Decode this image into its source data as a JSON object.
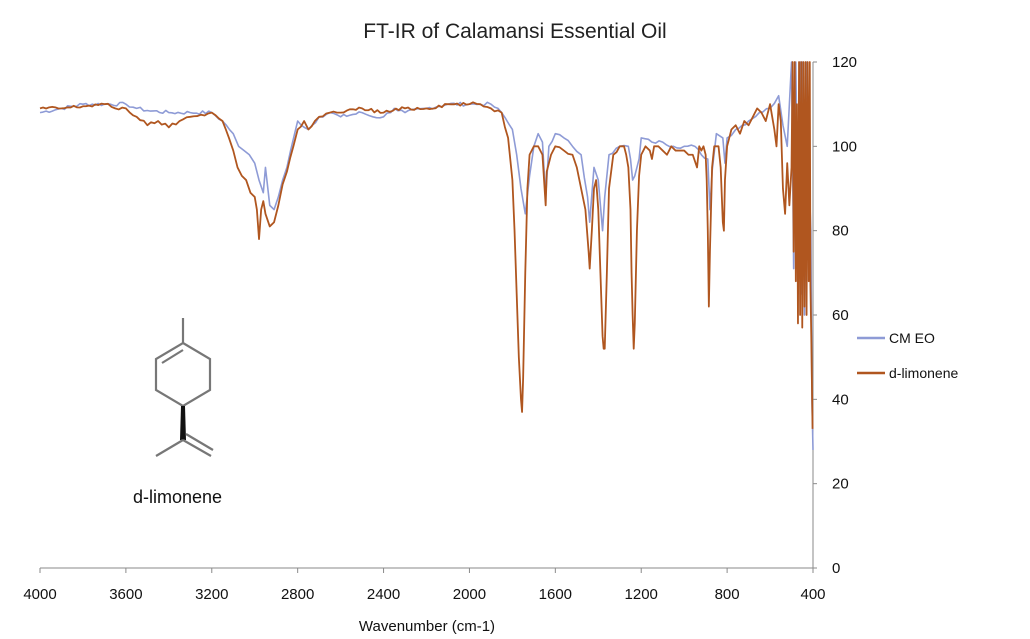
{
  "chart_data": {
    "type": "line",
    "title": "FT-IR of Calamansi Essential Oil",
    "xlabel": "Wavenumber (cm-1)",
    "ylabel": "",
    "xlim": [
      4000,
      400
    ],
    "ylim": [
      0,
      120
    ],
    "x_reversed": true,
    "x_ticks": [
      "4000",
      "3600",
      "3200",
      "2800",
      "2400",
      "2000",
      "1600",
      "1200",
      "800",
      "400"
    ],
    "y_ticks": [
      "0",
      "20",
      "40",
      "60",
      "80",
      "100",
      "120"
    ],
    "y_axis_position": "right",
    "grid": false,
    "legend_position": "right",
    "annotation": "d-limonene",
    "series": [
      {
        "name": "CM EO",
        "color": "#8e9bd6",
        "points": [
          [
            4000,
            108
          ],
          [
            3900,
            109
          ],
          [
            3800,
            110
          ],
          [
            3700,
            110
          ],
          [
            3600,
            110
          ],
          [
            3550,
            109
          ],
          [
            3500,
            108.5
          ],
          [
            3400,
            108
          ],
          [
            3300,
            108
          ],
          [
            3200,
            108
          ],
          [
            3150,
            106
          ],
          [
            3100,
            103
          ],
          [
            3075,
            100
          ],
          [
            3050,
            99
          ],
          [
            3025,
            98
          ],
          [
            3000,
            96
          ],
          [
            2980,
            92
          ],
          [
            2960,
            89
          ],
          [
            2950,
            95
          ],
          [
            2930,
            86
          ],
          [
            2910,
            85
          ],
          [
            2890,
            88
          ],
          [
            2870,
            92
          ],
          [
            2850,
            95
          ],
          [
            2800,
            106
          ],
          [
            2750,
            104
          ],
          [
            2700,
            107
          ],
          [
            2650,
            108
          ],
          [
            2600,
            107
          ],
          [
            2500,
            108
          ],
          [
            2450,
            107
          ],
          [
            2400,
            107
          ],
          [
            2350,
            109
          ],
          [
            2300,
            108
          ],
          [
            2200,
            109
          ],
          [
            2100,
            110
          ],
          [
            2000,
            110
          ],
          [
            1950,
            110
          ],
          [
            1900,
            110
          ],
          [
            1850,
            108
          ],
          [
            1800,
            104
          ],
          [
            1780,
            98
          ],
          [
            1760,
            90
          ],
          [
            1740,
            84
          ],
          [
            1720,
            93
          ],
          [
            1700,
            100
          ],
          [
            1680,
            103
          ],
          [
            1660,
            101
          ],
          [
            1645,
            88
          ],
          [
            1630,
            100
          ],
          [
            1600,
            103
          ],
          [
            1560,
            102
          ],
          [
            1520,
            100
          ],
          [
            1480,
            98
          ],
          [
            1450,
            88
          ],
          [
            1440,
            82
          ],
          [
            1420,
            95
          ],
          [
            1400,
            92
          ],
          [
            1380,
            80
          ],
          [
            1370,
            88
          ],
          [
            1350,
            98
          ],
          [
            1300,
            100
          ],
          [
            1260,
            100
          ],
          [
            1250,
            97
          ],
          [
            1240,
            92
          ],
          [
            1230,
            93
          ],
          [
            1210,
            97
          ],
          [
            1200,
            102
          ],
          [
            1150,
            101
          ],
          [
            1100,
            101
          ],
          [
            1050,
            100
          ],
          [
            1000,
            100
          ],
          [
            950,
            100
          ],
          [
            920,
            98
          ],
          [
            890,
            97
          ],
          [
            880,
            85
          ],
          [
            870,
            94
          ],
          [
            850,
            103
          ],
          [
            820,
            102
          ],
          [
            810,
            96
          ],
          [
            800,
            102
          ],
          [
            760,
            104
          ],
          [
            700,
            106
          ],
          [
            650,
            108
          ],
          [
            600,
            109
          ],
          [
            560,
            112
          ],
          [
            540,
            105
          ],
          [
            520,
            100
          ],
          [
            500,
            120
          ],
          [
            490,
            71
          ],
          [
            480,
            120
          ],
          [
            470,
            78
          ],
          [
            460,
            120
          ],
          [
            455,
            65
          ],
          [
            450,
            120
          ],
          [
            440,
            60
          ],
          [
            430,
            120
          ],
          [
            420,
            95
          ],
          [
            410,
            80
          ],
          [
            405,
            40
          ],
          [
            400,
            28
          ]
        ]
      },
      {
        "name": "d-limonene",
        "color": "#b0561f",
        "points": [
          [
            4000,
            109
          ],
          [
            3900,
            109
          ],
          [
            3800,
            109.5
          ],
          [
            3700,
            110
          ],
          [
            3650,
            109
          ],
          [
            3600,
            109
          ],
          [
            3550,
            107
          ],
          [
            3500,
            105
          ],
          [
            3450,
            106
          ],
          [
            3400,
            104.5
          ],
          [
            3350,
            106
          ],
          [
            3300,
            107
          ],
          [
            3250,
            107.5
          ],
          [
            3200,
            108
          ],
          [
            3150,
            106
          ],
          [
            3120,
            102
          ],
          [
            3100,
            99
          ],
          [
            3080,
            95
          ],
          [
            3060,
            93
          ],
          [
            3040,
            92
          ],
          [
            3020,
            89
          ],
          [
            3000,
            88
          ],
          [
            2990,
            85
          ],
          [
            2980,
            78
          ],
          [
            2970,
            85
          ],
          [
            2960,
            87
          ],
          [
            2950,
            84
          ],
          [
            2930,
            81
          ],
          [
            2910,
            82
          ],
          [
            2890,
            86
          ],
          [
            2870,
            91
          ],
          [
            2850,
            94
          ],
          [
            2820,
            100
          ],
          [
            2800,
            104
          ],
          [
            2770,
            106
          ],
          [
            2750,
            104
          ],
          [
            2720,
            106
          ],
          [
            2700,
            107
          ],
          [
            2650,
            108
          ],
          [
            2600,
            108
          ],
          [
            2500,
            109
          ],
          [
            2400,
            108
          ],
          [
            2300,
            109
          ],
          [
            2200,
            109
          ],
          [
            2100,
            110
          ],
          [
            2000,
            110
          ],
          [
            1950,
            110
          ],
          [
            1900,
            109
          ],
          [
            1850,
            108
          ],
          [
            1820,
            102
          ],
          [
            1800,
            92
          ],
          [
            1790,
            80
          ],
          [
            1780,
            65
          ],
          [
            1770,
            50
          ],
          [
            1760,
            40
          ],
          [
            1755,
            37
          ],
          [
            1750,
            45
          ],
          [
            1740,
            70
          ],
          [
            1730,
            90
          ],
          [
            1720,
            98
          ],
          [
            1700,
            100
          ],
          [
            1680,
            100
          ],
          [
            1660,
            98
          ],
          [
            1650,
            90
          ],
          [
            1645,
            86
          ],
          [
            1640,
            94
          ],
          [
            1620,
            98
          ],
          [
            1600,
            100
          ],
          [
            1560,
            99
          ],
          [
            1520,
            98
          ],
          [
            1500,
            95
          ],
          [
            1480,
            90
          ],
          [
            1460,
            85
          ],
          [
            1445,
            75
          ],
          [
            1440,
            71
          ],
          [
            1430,
            80
          ],
          [
            1420,
            90
          ],
          [
            1410,
            92
          ],
          [
            1400,
            85
          ],
          [
            1390,
            70
          ],
          [
            1380,
            55
          ],
          [
            1375,
            52
          ],
          [
            1370,
            52
          ],
          [
            1360,
            70
          ],
          [
            1350,
            90
          ],
          [
            1330,
            98
          ],
          [
            1300,
            100
          ],
          [
            1280,
            100
          ],
          [
            1270,
            98
          ],
          [
            1260,
            95
          ],
          [
            1250,
            85
          ],
          [
            1245,
            70
          ],
          [
            1240,
            60
          ],
          [
            1235,
            52
          ],
          [
            1230,
            58
          ],
          [
            1220,
            80
          ],
          [
            1210,
            93
          ],
          [
            1200,
            98
          ],
          [
            1180,
            100
          ],
          [
            1160,
            99
          ],
          [
            1150,
            97
          ],
          [
            1140,
            100
          ],
          [
            1120,
            100
          ],
          [
            1100,
            99
          ],
          [
            1080,
            98
          ],
          [
            1060,
            100
          ],
          [
            1040,
            99
          ],
          [
            1020,
            99
          ],
          [
            1000,
            99
          ],
          [
            980,
            98
          ],
          [
            960,
            98
          ],
          [
            940,
            95
          ],
          [
            930,
            100
          ],
          [
            920,
            99
          ],
          [
            910,
            100
          ],
          [
            900,
            98
          ],
          [
            895,
            92
          ],
          [
            890,
            80
          ],
          [
            885,
            62
          ],
          [
            880,
            75
          ],
          [
            870,
            95
          ],
          [
            860,
            100
          ],
          [
            840,
            100
          ],
          [
            830,
            95
          ],
          [
            820,
            82
          ],
          [
            815,
            80
          ],
          [
            810,
            92
          ],
          [
            800,
            100
          ],
          [
            780,
            104
          ],
          [
            760,
            105
          ],
          [
            740,
            103
          ],
          [
            720,
            106
          ],
          [
            700,
            105
          ],
          [
            680,
            107
          ],
          [
            660,
            109
          ],
          [
            640,
            108
          ],
          [
            620,
            106
          ],
          [
            600,
            110
          ],
          [
            580,
            104
          ],
          [
            570,
            100
          ],
          [
            560,
            110
          ],
          [
            550,
            106
          ],
          [
            540,
            90
          ],
          [
            530,
            84
          ],
          [
            520,
            96
          ],
          [
            510,
            86
          ],
          [
            500,
            95
          ],
          [
            495,
            120
          ],
          [
            490,
            75
          ],
          [
            485,
            120
          ],
          [
            480,
            68
          ],
          [
            475,
            110
          ],
          [
            470,
            58
          ],
          [
            465,
            120
          ],
          [
            460,
            60
          ],
          [
            455,
            120
          ],
          [
            450,
            57
          ],
          [
            445,
            120
          ],
          [
            440,
            62
          ],
          [
            435,
            120
          ],
          [
            430,
            60
          ],
          [
            425,
            120
          ],
          [
            420,
            68
          ],
          [
            415,
            120
          ],
          [
            412,
            67
          ],
          [
            408,
            55
          ],
          [
            404,
            40
          ],
          [
            402,
            33
          ]
        ]
      }
    ]
  }
}
